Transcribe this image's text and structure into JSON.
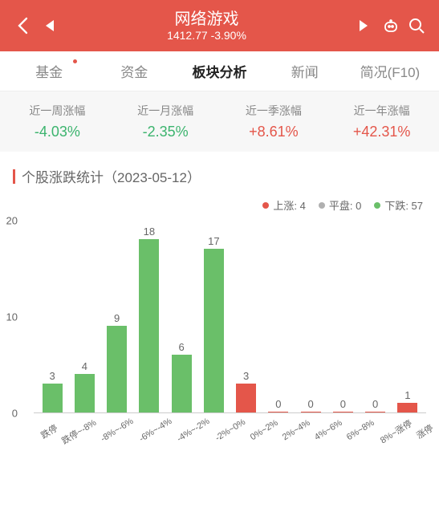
{
  "header": {
    "title": "网络游戏",
    "price": "1412.77",
    "change": "-3.90%"
  },
  "tabs": [
    {
      "label": "基金",
      "active": false,
      "dot": true
    },
    {
      "label": "资金",
      "active": false,
      "dot": false
    },
    {
      "label": "板块分析",
      "active": true,
      "dot": false
    },
    {
      "label": "新闻",
      "active": false,
      "dot": false
    },
    {
      "label": "简况(F10)",
      "active": false,
      "dot": false
    }
  ],
  "stats": [
    {
      "label": "近一周涨幅",
      "value": "-4.03%",
      "dir": "neg"
    },
    {
      "label": "近一月涨幅",
      "value": "-2.35%",
      "dir": "neg"
    },
    {
      "label": "近一季涨幅",
      "value": "+8.61%",
      "dir": "pos"
    },
    {
      "label": "近一年涨幅",
      "value": "+42.31%",
      "dir": "pos"
    }
  ],
  "section": {
    "title": "个股涨跌统计（2023-05-12）"
  },
  "legend": [
    {
      "label": "上涨:",
      "count": "4",
      "color": "#e4564a"
    },
    {
      "label": "平盘:",
      "count": "0",
      "color": "#b0b0b0"
    },
    {
      "label": "下跌:",
      "count": "57",
      "color": "#6abf69"
    }
  ],
  "chart": {
    "ymax": 20,
    "yticks": [
      0,
      10,
      20
    ],
    "bar_colors": {
      "down": "#6abf69",
      "up": "#e4564a"
    },
    "bars": [
      {
        "x": "跌停",
        "v": 3,
        "c": "down"
      },
      {
        "x": "跌停~-8%",
        "v": 4,
        "c": "down"
      },
      {
        "x": "-8%~-6%",
        "v": 9,
        "c": "down"
      },
      {
        "x": "-6%~-4%",
        "v": 18,
        "c": "down"
      },
      {
        "x": "-4%~-2%",
        "v": 6,
        "c": "down"
      },
      {
        "x": "-2%~0%",
        "v": 17,
        "c": "down"
      },
      {
        "x": "0%~2%",
        "v": 3,
        "c": "up"
      },
      {
        "x": "2%~4%",
        "v": 0,
        "c": "up"
      },
      {
        "x": "4%~6%",
        "v": 0,
        "c": "up"
      },
      {
        "x": "6%~8%",
        "v": 0,
        "c": "up"
      },
      {
        "x": "8%~涨停",
        "v": 0,
        "c": "up"
      },
      {
        "x": "涨停",
        "v": 1,
        "c": "up"
      }
    ]
  }
}
